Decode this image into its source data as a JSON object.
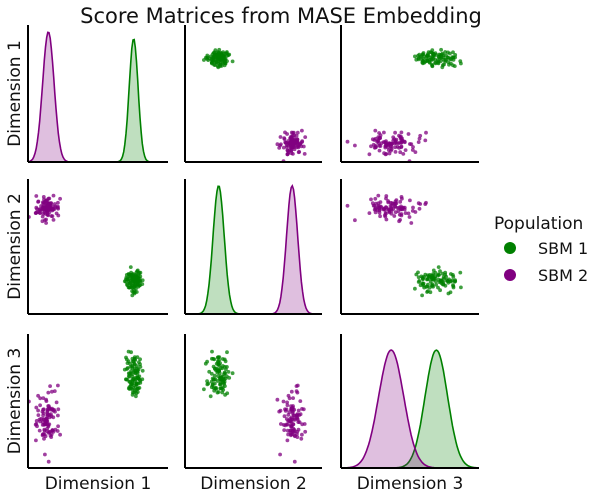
{
  "chart_data": {
    "type": "scatter",
    "kind": "pairplot",
    "title": "Score Matrices from MASE Embedding",
    "variables": [
      "Dimension 1",
      "Dimension 2",
      "Dimension 3"
    ],
    "diagonal": "kde",
    "grid": false,
    "legend": {
      "title": "Population",
      "placement": "right-center",
      "entries": [
        {
          "name": "SBM 1",
          "color": "#008000"
        },
        {
          "name": "SBM 2",
          "color": "#800080"
        }
      ]
    },
    "axis_ranges": {
      "Dimension 1": [
        -0.05,
        1.05
      ],
      "Dimension 2": [
        -0.05,
        1.05
      ],
      "Dimension 3": [
        -0.05,
        1.05
      ]
    },
    "series": [
      {
        "name": "SBM 1",
        "color": "#008000",
        "n_points": 100,
        "center": {
          "Dimension 1": 0.78,
          "Dimension 2": 0.22,
          "Dimension 3": 0.71
        },
        "spread": {
          "Dimension 1": 0.035,
          "Dimension 2": 0.045,
          "Dimension 3": 0.09
        },
        "kde_peak": {
          "Dimension 1": 0.9,
          "Dimension 2": 0.95,
          "Dimension 3": 0.88
        }
      },
      {
        "name": "SBM 2",
        "color": "#800080",
        "n_points": 100,
        "center": {
          "Dimension 1": 0.11,
          "Dimension 2": 0.81,
          "Dimension 3": 0.35
        },
        "spread": {
          "Dimension 1": 0.045,
          "Dimension 2": 0.045,
          "Dimension 3": 0.1
        },
        "kde_peak": {
          "Dimension 1": 0.95,
          "Dimension 2": 0.95,
          "Dimension 3": 0.88
        }
      }
    ]
  }
}
